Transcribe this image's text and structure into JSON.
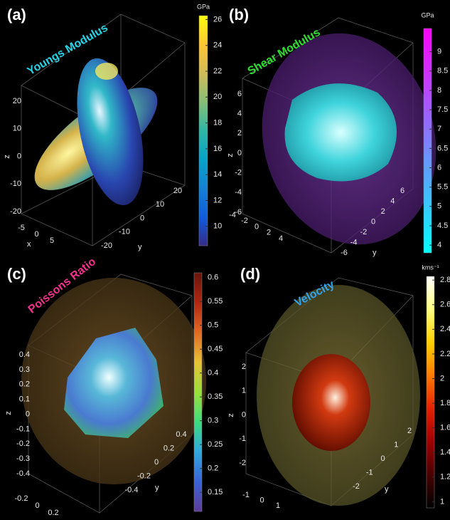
{
  "chart_data": [
    {
      "type": "surface3d",
      "panel": "(a)",
      "title": "Youngs Modulus",
      "title_color": "#27d3e6",
      "xlabel": "x",
      "ylabel": "y",
      "zlabel": "z",
      "xticks": [
        -5,
        0,
        5
      ],
      "yticks": [
        -20,
        -10,
        0,
        10,
        20
      ],
      "zticks": [
        -20,
        -10,
        0,
        10,
        20
      ],
      "colorbar": {
        "label": "GPa",
        "lim": [
          8.5,
          26.3
        ],
        "ticks": [
          10,
          12,
          14,
          16,
          18,
          20,
          22,
          24,
          26
        ],
        "colormap": [
          "#352a87",
          "#0f5cdd",
          "#1481d6",
          "#06a4ca",
          "#2eb7a4",
          "#87bf77",
          "#d1bb59",
          "#fec832",
          "#f9fb0e"
        ]
      }
    },
    {
      "type": "surface3d",
      "panel": "(b)",
      "title": "Shear Modulus",
      "title_color": "#2ee02e",
      "ylabel": "y",
      "zlabel": "z",
      "xticks": [
        -4,
        -2,
        0,
        2,
        4
      ],
      "yticks": [
        -6,
        -4,
        -2,
        0,
        2,
        4,
        6
      ],
      "zticks": [
        -6,
        -4,
        -2,
        0,
        2,
        4,
        6
      ],
      "colorbar": {
        "label": "GPa",
        "lim": [
          3.8,
          9.6
        ],
        "ticks": [
          4,
          4.5,
          5,
          5.5,
          6,
          6.5,
          7,
          7.5,
          8,
          8.5,
          9
        ],
        "colormap": [
          "#00ffff",
          "#55aaff",
          "#aa55ff",
          "#ff00ff"
        ]
      }
    },
    {
      "type": "surface3d",
      "panel": "(c)",
      "title": "Poissons Ratio",
      "title_color": "#f0328c",
      "ylabel": "y",
      "zlabel": "z",
      "xticks": [
        -0.2,
        0,
        0.2
      ],
      "yticks": [
        -0.4,
        -0.2,
        0,
        0.2,
        0.4
      ],
      "zticks": [
        -0.4,
        -0.3,
        -0.2,
        -0.1,
        0,
        0.1,
        0.2,
        0.3,
        0.4
      ],
      "colorbar": {
        "lim": [
          0.11,
          0.61
        ],
        "ticks": [
          0.15,
          0.2,
          0.25,
          0.3,
          0.35,
          0.4,
          0.45,
          0.5,
          0.55,
          0.6
        ],
        "colormap": [
          "#5e3c99",
          "#3b62d9",
          "#2fa8e0",
          "#3fdc7e",
          "#9ce03a",
          "#e8c234",
          "#e36a23",
          "#b02613",
          "#6b140c"
        ]
      }
    },
    {
      "type": "surface3d",
      "panel": "(d)",
      "title": "Velocity",
      "title_color": "#2fa4f0",
      "ylabel": "y",
      "zlabel": "z",
      "xticks": [
        -1,
        0,
        1
      ],
      "yticks": [
        -2,
        -1,
        0,
        1,
        2
      ],
      "zticks": [
        -2,
        -1,
        0,
        1,
        2
      ],
      "colorbar": {
        "label": "kms⁻¹",
        "lim": [
          0.95,
          2.83
        ],
        "ticks": [
          1,
          1.2,
          1.4,
          1.6,
          1.8,
          2,
          2.2,
          2.4,
          2.6,
          2.8
        ],
        "colormap": [
          "#000000",
          "#4a0000",
          "#a00000",
          "#e52000",
          "#ff7a00",
          "#ffd000",
          "#ffff80",
          "#ffffff"
        ]
      }
    }
  ]
}
